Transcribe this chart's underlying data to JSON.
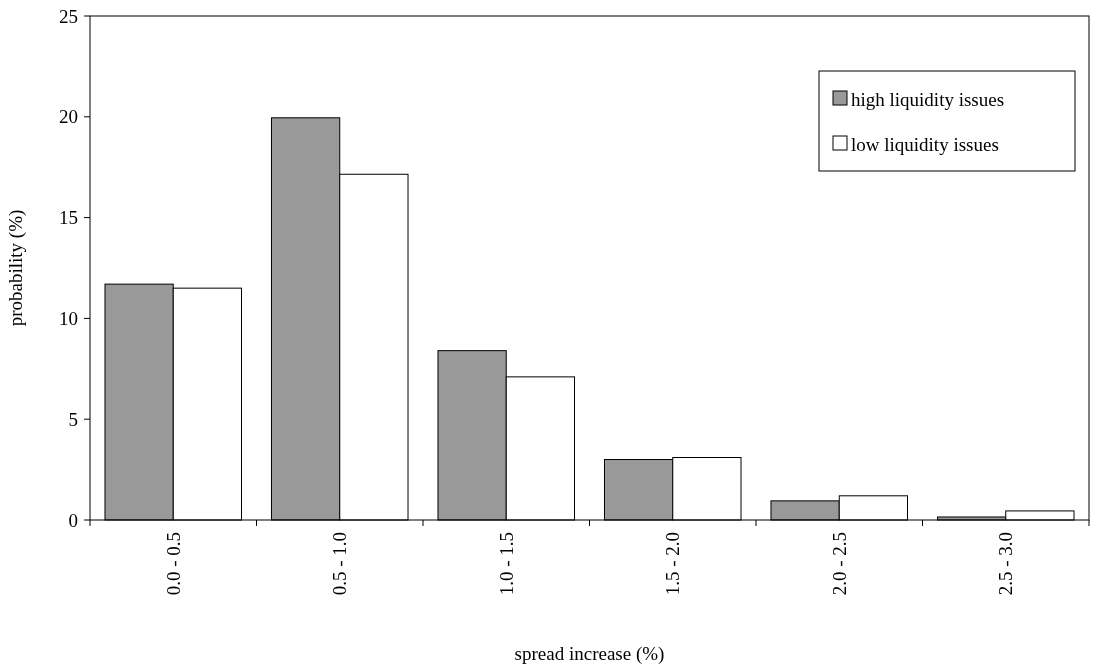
{
  "chart_data": {
    "type": "bar",
    "xlabel": "spread increase (%)",
    "ylabel": "probability (%)",
    "categories": [
      "0.0 - 0.5",
      "0.5 - 1.0",
      "1.0 - 1.5",
      "1.5 - 2.0",
      "2.0 - 2.5",
      "2.5 - 3.0"
    ],
    "series": [
      {
        "name": "high liquidity issues",
        "color": "#999999",
        "values": [
          11.7,
          19.95,
          8.4,
          3.0,
          0.95,
          0.15
        ]
      },
      {
        "name": "low liquidity issues",
        "color": "#ffffff",
        "values": [
          11.5,
          17.15,
          7.1,
          3.1,
          1.2,
          0.45
        ]
      }
    ],
    "ylim": [
      0,
      25
    ],
    "yticks": [
      0,
      5,
      10,
      15,
      20,
      25
    ],
    "grid": false,
    "legend": "top right"
  }
}
